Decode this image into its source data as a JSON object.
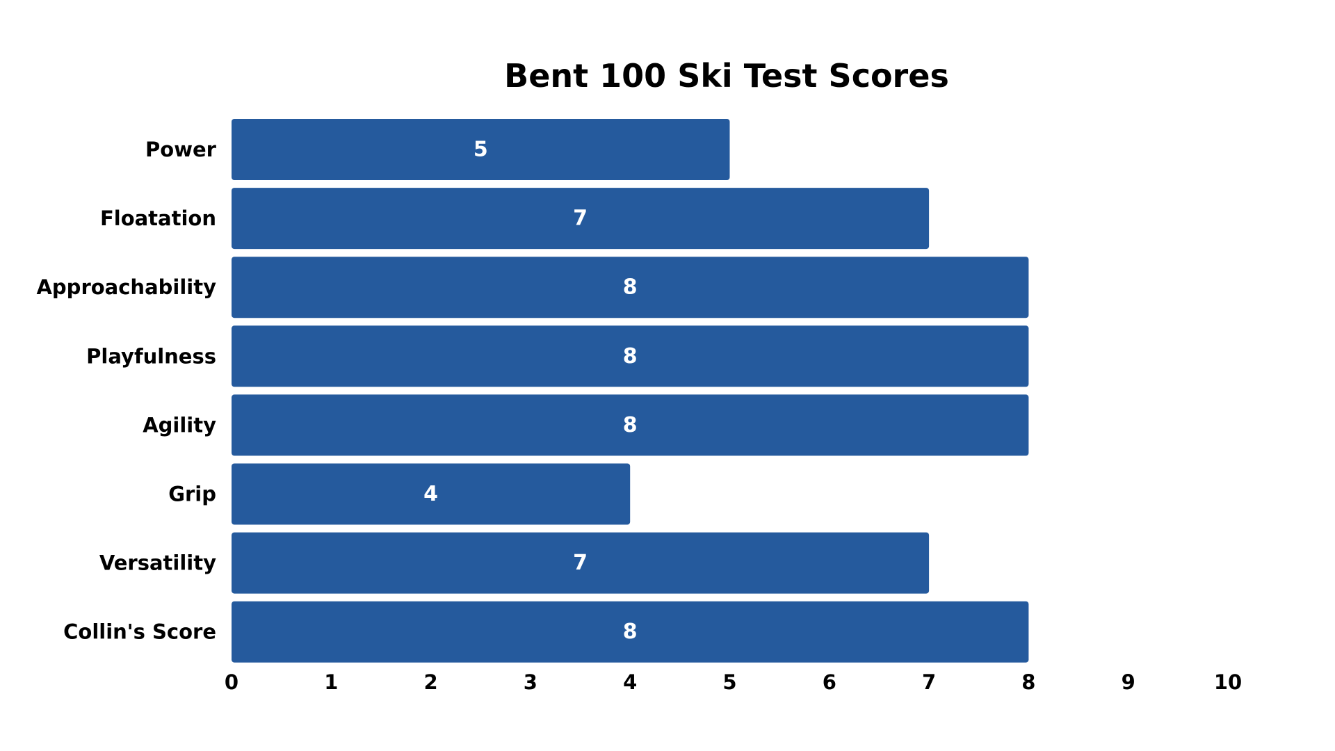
{
  "chart_data": {
    "type": "bar",
    "orientation": "horizontal",
    "title": "Bent 100 Ski Test Scores",
    "xlabel": "",
    "ylabel": "",
    "categories": [
      "Power",
      "Floatation",
      "Approachability",
      "Playfulness",
      "Agility",
      "Grip",
      "Versatility",
      "Collin's Score"
    ],
    "values": [
      5,
      7,
      8,
      8,
      8,
      4,
      7,
      8
    ],
    "xlim": [
      0,
      10
    ],
    "xticks": [
      0,
      1,
      2,
      3,
      4,
      5,
      6,
      7,
      8,
      9,
      10
    ],
    "bar_color": "#255A9D",
    "value_label_color": "#ffffff",
    "grid": false,
    "legend": "none"
  }
}
